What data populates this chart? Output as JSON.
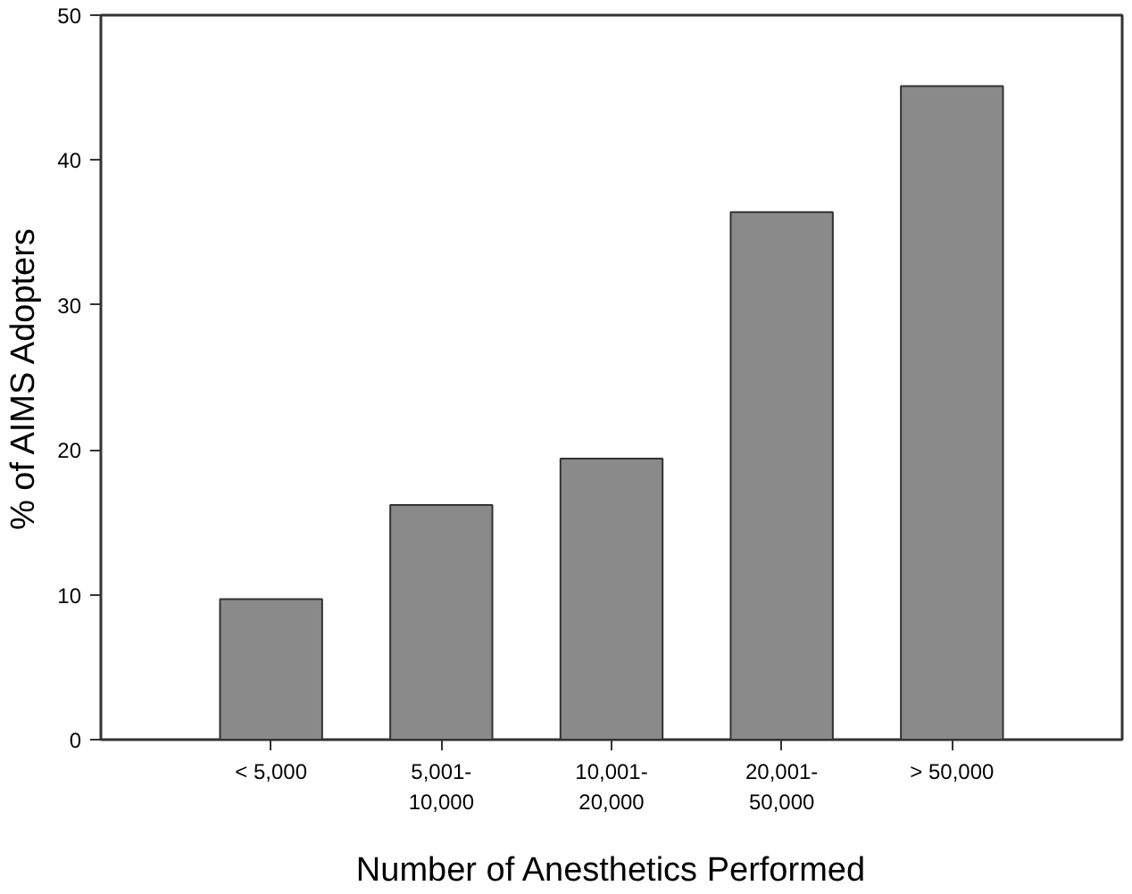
{
  "chart_data": {
    "type": "bar",
    "xlabel": "Number of Anesthetics Performed",
    "ylabel": "% of AIMS Adopters",
    "categories": [
      "< 5,000",
      "5,001-\n10,000",
      "10,001-\n20,000",
      "20,001-\n50,000",
      "> 50,000"
    ],
    "values": [
      9.7,
      16.2,
      19.4,
      36.4,
      45.1
    ],
    "color": "#8a8a8a",
    "ylim": [
      0,
      50
    ],
    "yticks": [
      0,
      10,
      20,
      30,
      40,
      50
    ],
    "grid": false
  }
}
